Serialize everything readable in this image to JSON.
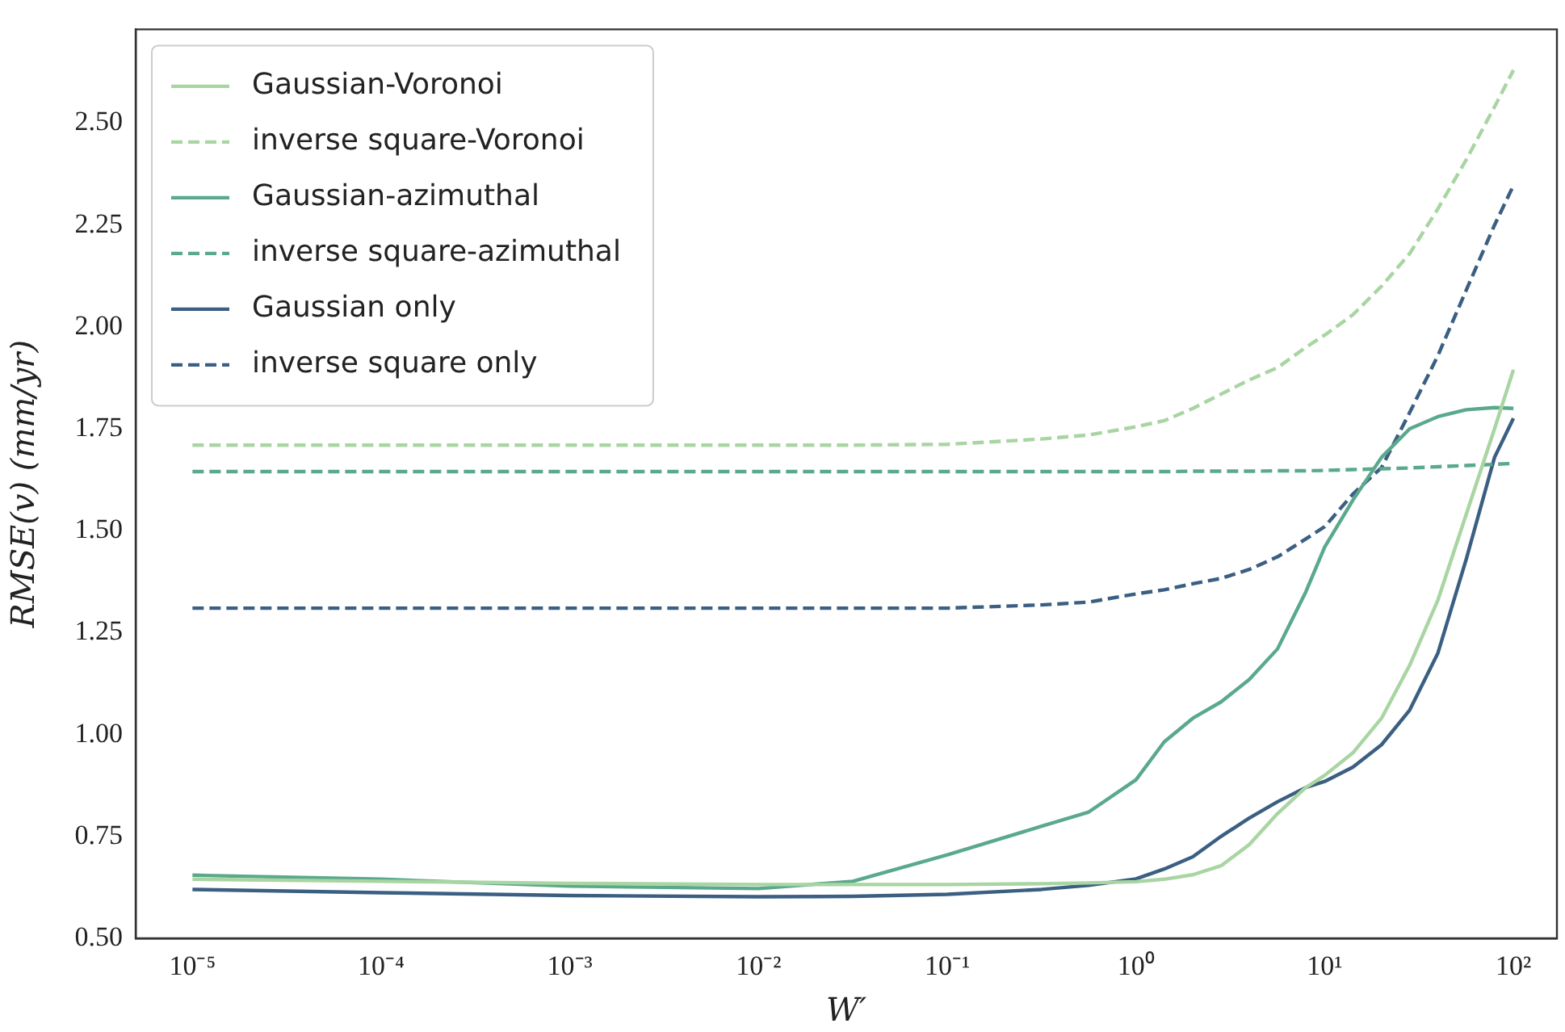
{
  "chart_data": {
    "type": "line",
    "xlabel": "W′",
    "ylabel": "RMSE(v) (mm/yr)",
    "log": "x",
    "grid": false,
    "legend": "top left",
    "marker": "none",
    "x": [
      1e-05,
      0.0001,
      0.001,
      0.01,
      0.0316,
      0.1,
      0.316,
      0.562,
      1,
      1.41,
      2,
      2.82,
      3.98,
      5.62,
      7.94,
      10,
      14.1,
      20,
      28.2,
      39.8,
      56.2,
      79.4,
      100
    ],
    "xlim": [
      5e-06,
      170
    ],
    "xticks": [
      {
        "value": 1e-05,
        "label": "10⁻⁵"
      },
      {
        "value": 0.0001,
        "label": "10⁻⁴"
      },
      {
        "value": 0.001,
        "label": "10⁻³"
      },
      {
        "value": 0.01,
        "label": "10⁻²"
      },
      {
        "value": 0.1,
        "label": "10⁻¹"
      },
      {
        "value": 1,
        "label": "10⁰"
      },
      {
        "value": 10,
        "label": "10¹"
      },
      {
        "value": 100,
        "label": "10²"
      }
    ],
    "ylim": [
      0.5,
      2.73
    ],
    "yticks": [
      {
        "value": 0.5,
        "label": "0.50"
      },
      {
        "value": 0.75,
        "label": "0.75"
      },
      {
        "value": 1,
        "label": "1.00"
      },
      {
        "value": 1.25,
        "label": "1.25"
      },
      {
        "value": 1.5,
        "label": "1.50"
      },
      {
        "value": 1.75,
        "label": "1.75"
      },
      {
        "value": 2,
        "label": "2.00"
      },
      {
        "value": 2.25,
        "label": "2.25"
      },
      {
        "value": 2.5,
        "label": "2.50"
      }
    ],
    "series": [
      {
        "name": "Gaussian-Voronoi",
        "color": "#a8d5a2",
        "line_style": "solid",
        "values": [
          0.645,
          0.64,
          0.635,
          0.632,
          0.632,
          0.632,
          0.634,
          0.636,
          0.639,
          0.645,
          0.656,
          0.678,
          0.73,
          0.806,
          0.87,
          0.9,
          0.955,
          1.04,
          1.17,
          1.33,
          1.54,
          1.75,
          1.895
        ]
      },
      {
        "name": "inverse square-Voronoi",
        "color": "#a8d5a2",
        "line_style": "dashed",
        "values": [
          1.71,
          1.71,
          1.71,
          1.71,
          1.71,
          1.712,
          1.725,
          1.735,
          1.755,
          1.77,
          1.8,
          1.835,
          1.87,
          1.9,
          1.95,
          1.98,
          2.03,
          2.1,
          2.18,
          2.29,
          2.41,
          2.54,
          2.63
        ]
      },
      {
        "name": "Gaussian-azimuthal",
        "color": "#5aa98c",
        "line_style": "solid",
        "values": [
          0.655,
          0.645,
          0.628,
          0.622,
          0.64,
          0.705,
          0.775,
          0.81,
          0.889,
          0.982,
          1.04,
          1.08,
          1.135,
          1.21,
          1.35,
          1.46,
          1.575,
          1.68,
          1.75,
          1.78,
          1.797,
          1.802,
          1.8
        ]
      },
      {
        "name": "inverse square-azimuthal",
        "color": "#5aa98c",
        "line_style": "dashed",
        "values": [
          1.645,
          1.645,
          1.645,
          1.645,
          1.645,
          1.645,
          1.645,
          1.645,
          1.645,
          1.645,
          1.646,
          1.646,
          1.646,
          1.647,
          1.647,
          1.648,
          1.65,
          1.652,
          1.654,
          1.657,
          1.66,
          1.663,
          1.665
        ]
      },
      {
        "name": "Gaussian only",
        "color": "#3b5f82",
        "line_style": "solid",
        "values": [
          0.62,
          0.612,
          0.605,
          0.602,
          0.603,
          0.608,
          0.62,
          0.63,
          0.646,
          0.67,
          0.7,
          0.75,
          0.795,
          0.835,
          0.87,
          0.885,
          0.92,
          0.975,
          1.06,
          1.2,
          1.43,
          1.68,
          1.776
        ]
      },
      {
        "name": "inverse square only",
        "color": "#3b5f82",
        "line_style": "dashed",
        "values": [
          1.31,
          1.31,
          1.31,
          1.31,
          1.31,
          1.31,
          1.318,
          1.325,
          1.345,
          1.355,
          1.37,
          1.383,
          1.405,
          1.436,
          1.48,
          1.51,
          1.59,
          1.655,
          1.79,
          1.93,
          2.09,
          2.25,
          2.347
        ]
      }
    ]
  }
}
